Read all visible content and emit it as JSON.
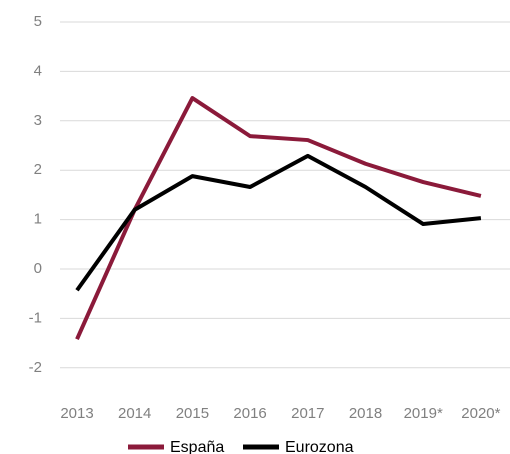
{
  "chart_data": {
    "type": "line",
    "categories": [
      "2013",
      "2014",
      "2015",
      "2016",
      "2017",
      "2018",
      "2019*",
      "2020*"
    ],
    "series": [
      {
        "name": "España",
        "color": "#8b1a3a",
        "values": [
          -1.42,
          1.2,
          3.46,
          2.69,
          2.61,
          2.13,
          1.76,
          1.48
        ]
      },
      {
        "name": "Eurozona",
        "color": "#000000",
        "values": [
          -0.43,
          1.2,
          1.88,
          1.66,
          2.29,
          1.66,
          0.91,
          1.03
        ]
      }
    ],
    "ylim": [
      -2.6,
      5
    ],
    "yticks": [
      -2,
      -1,
      0,
      1,
      2,
      3,
      4,
      5
    ],
    "grid": true,
    "legend": "bottom"
  }
}
